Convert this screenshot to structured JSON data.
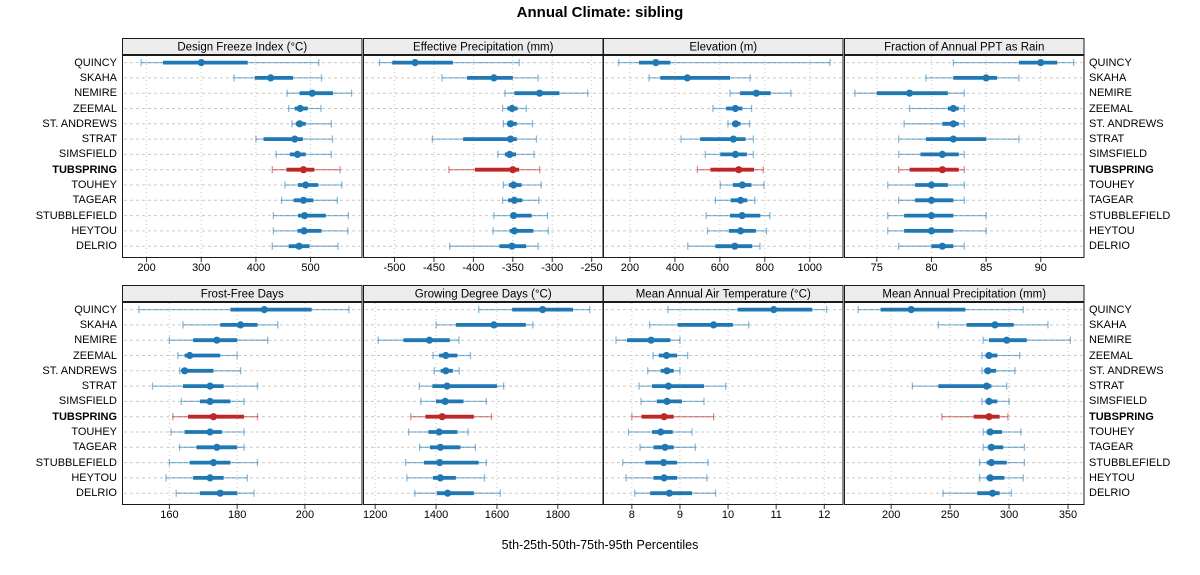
{
  "title": "Annual Climate: sibling",
  "footer": "5th-25th-50th-75th-95th Percentiles",
  "stations": [
    "QUINCY",
    "SKAHA",
    "NEMIRE",
    "ZEEMAL",
    "ST. ANDREWS",
    "STRAT",
    "SIMSFIELD",
    "TUBSPRING",
    "TOUHEY",
    "TAGEAR",
    "STUBBLEFIELD",
    "HEYTOU",
    "DELRIO"
  ],
  "highlight_station": "TUBSPRING",
  "colors": {
    "series": "#1f78b4",
    "highlight": "#bf2626",
    "whisker_opacity": 0.5,
    "strip_bg": "#ececec",
    "panel_border": "#1a1a1a",
    "grid_h": "#c9c9c9",
    "grid_v": "#c6c6c6",
    "tick": "#333333",
    "text": "#000000"
  },
  "chart_data": {
    "type": "scatter",
    "variant": "percentile-whisker-dotplot-grid",
    "grid": "2x4",
    "percentiles": [
      5,
      25,
      50,
      75,
      95
    ],
    "legend_note": "dot = 50th, thick bar = 25th-75th, thin capped line = 5th-95th",
    "panels": [
      {
        "title": "Design Freeze Index (°C)",
        "row": 0,
        "col": 0,
        "xlim": [
          155,
          595
        ],
        "ticks": [
          200,
          300,
          400,
          500
        ],
        "values": [
          [
            190,
            230,
            300,
            385,
            515
          ],
          [
            360,
            398,
            427,
            468,
            520
          ],
          [
            457,
            480,
            503,
            541,
            575
          ],
          [
            460,
            471,
            481,
            495,
            519
          ],
          [
            466,
            473,
            480,
            491,
            538
          ],
          [
            400,
            414,
            471,
            486,
            540
          ],
          [
            437,
            462,
            476,
            491,
            538
          ],
          [
            430,
            456,
            487,
            507,
            554
          ],
          [
            453,
            477,
            491,
            514,
            557
          ],
          [
            447,
            469,
            487,
            505,
            549
          ],
          [
            432,
            477,
            489,
            528,
            569
          ],
          [
            432,
            476,
            488,
            520,
            568
          ],
          [
            430,
            460,
            479,
            498,
            550
          ]
        ]
      },
      {
        "title": "Effective Precipitation (mm)",
        "row": 0,
        "col": 1,
        "xlim": [
          -540,
          -235
        ],
        "ticks": [
          -500,
          -450,
          -400,
          -350,
          -300,
          -250
        ],
        "values": [
          [
            -519,
            -503,
            -474,
            -426,
            -342
          ],
          [
            -440,
            -408,
            -374,
            -350,
            -318
          ],
          [
            -360,
            -348,
            -316,
            -291,
            -255
          ],
          [
            -363,
            -357,
            -351,
            -344,
            -333
          ],
          [
            -362,
            -357,
            -353,
            -345,
            -325
          ],
          [
            -452,
            -413,
            -353,
            -345,
            -320
          ],
          [
            -369,
            -360,
            -354,
            -346,
            -323
          ],
          [
            -431,
            -398,
            -350,
            -342,
            -316
          ],
          [
            -362,
            -355,
            -349,
            -339,
            -314
          ],
          [
            -363,
            -356,
            -348,
            -338,
            -317
          ],
          [
            -374,
            -353,
            -349,
            -326,
            -306
          ],
          [
            -375,
            -354,
            -348,
            -324,
            -305
          ],
          [
            -430,
            -367,
            -351,
            -333,
            -318
          ]
        ]
      },
      {
        "title": "Elevation (m)",
        "row": 0,
        "col": 2,
        "xlim": [
          80,
          1150
        ],
        "ticks": [
          200,
          400,
          600,
          800,
          1000
        ],
        "values": [
          [
            150,
            240,
            315,
            380,
            1090
          ],
          [
            285,
            335,
            455,
            645,
            735
          ],
          [
            645,
            690,
            762,
            826,
            916
          ],
          [
            569,
            628,
            669,
            700,
            741
          ],
          [
            636,
            655,
            670,
            692,
            732
          ],
          [
            427,
            512,
            660,
            714,
            749
          ],
          [
            535,
            602,
            669,
            720,
            749
          ],
          [
            500,
            558,
            684,
            752,
            793
          ],
          [
            602,
            658,
            700,
            740,
            796
          ],
          [
            580,
            648,
            692,
            722,
            755
          ],
          [
            539,
            645,
            699,
            780,
            822
          ],
          [
            545,
            640,
            692,
            760,
            807
          ],
          [
            457,
            580,
            666,
            744,
            778
          ]
        ]
      },
      {
        "title": "Fraction of Annual PPT as Rain",
        "row": 0,
        "col": 3,
        "xlim": [
          72,
          94
        ],
        "ticks": [
          75,
          80,
          85,
          90
        ],
        "values": [
          [
            82,
            88,
            90,
            91.5,
            93
          ],
          [
            79.5,
            82,
            85,
            86,
            88
          ],
          [
            73,
            75,
            78,
            81.5,
            83
          ],
          [
            78,
            81.5,
            82,
            82.5,
            83
          ],
          [
            77.5,
            81,
            82,
            82.5,
            83
          ],
          [
            77,
            79.5,
            82,
            85,
            88
          ],
          [
            77,
            79,
            81,
            82.5,
            83
          ],
          [
            77,
            78,
            81,
            82.5,
            83
          ],
          [
            76,
            78.5,
            80,
            81.5,
            83
          ],
          [
            77,
            78.5,
            80,
            82,
            83
          ],
          [
            76,
            77.5,
            80,
            82,
            85
          ],
          [
            76,
            77.5,
            80,
            82,
            85
          ],
          [
            77,
            80,
            81,
            82,
            83
          ]
        ]
      },
      {
        "title": "Frost-Free Days",
        "row": 1,
        "col": 0,
        "xlim": [
          146,
          217
        ],
        "ticks": [
          160,
          180,
          200
        ],
        "values": [
          [
            151,
            178,
            188,
            202,
            213
          ],
          [
            164,
            175,
            181,
            186,
            192
          ],
          [
            160,
            167,
            174,
            180,
            189
          ],
          [
            162.5,
            164.5,
            166,
            175,
            180
          ],
          [
            163,
            163.5,
            164.5,
            173,
            181
          ],
          [
            155,
            164,
            172,
            176,
            186
          ],
          [
            163.5,
            169,
            172,
            178,
            182
          ],
          [
            161,
            165.5,
            173,
            182,
            186
          ],
          [
            160.5,
            164.5,
            172,
            175.5,
            182
          ],
          [
            163,
            168,
            174,
            180,
            182
          ],
          [
            160,
            166,
            173,
            178,
            186
          ],
          [
            159,
            167,
            172,
            176,
            183
          ],
          [
            162,
            169,
            175,
            180,
            185
          ]
        ]
      },
      {
        "title": "Growing Degree Days (°C)",
        "row": 1,
        "col": 1,
        "xlim": [
          1160,
          1950
        ],
        "ticks": [
          1200,
          1400,
          1600,
          1800
        ],
        "values": [
          [
            1540,
            1650,
            1750,
            1850,
            1905
          ],
          [
            1400,
            1465,
            1590,
            1695,
            1718
          ],
          [
            1210,
            1293,
            1378,
            1445,
            1475
          ],
          [
            1390,
            1410,
            1432,
            1470,
            1513
          ],
          [
            1394,
            1415,
            1432,
            1455,
            1476
          ],
          [
            1345,
            1388,
            1436,
            1600,
            1622
          ],
          [
            1350,
            1400,
            1430,
            1490,
            1565
          ],
          [
            1317,
            1365,
            1420,
            1524,
            1582
          ],
          [
            1310,
            1375,
            1410,
            1470,
            1505
          ],
          [
            1346,
            1380,
            1414,
            1480,
            1529
          ],
          [
            1300,
            1360,
            1412,
            1540,
            1565
          ],
          [
            1304,
            1390,
            1414,
            1465,
            1559
          ],
          [
            1330,
            1403,
            1438,
            1524,
            1611
          ]
        ]
      },
      {
        "title": "Mean Annual Air Temperature (°C)",
        "row": 1,
        "col": 2,
        "xlim": [
          7.4,
          12.4
        ],
        "ticks": [
          8,
          9,
          10,
          11,
          12
        ],
        "values": [
          [
            8.75,
            10.2,
            10.95,
            11.75,
            12.05
          ],
          [
            8.37,
            8.95,
            9.7,
            10.1,
            10.43
          ],
          [
            7.67,
            7.9,
            8.4,
            8.8,
            9.0
          ],
          [
            8.44,
            8.56,
            8.72,
            8.94,
            9.16
          ],
          [
            8.33,
            8.6,
            8.73,
            8.87,
            9.0
          ],
          [
            8.15,
            8.42,
            8.76,
            9.5,
            9.95
          ],
          [
            8.19,
            8.52,
            8.73,
            9.04,
            9.5
          ],
          [
            8.0,
            8.2,
            8.67,
            8.87,
            9.7
          ],
          [
            7.93,
            8.42,
            8.6,
            8.85,
            9.25
          ],
          [
            8.17,
            8.45,
            8.69,
            8.87,
            9.32
          ],
          [
            7.81,
            8.28,
            8.66,
            8.94,
            9.58
          ],
          [
            7.88,
            8.45,
            8.67,
            8.94,
            9.56
          ],
          [
            8.06,
            8.38,
            8.78,
            9.25,
            9.74
          ]
        ]
      },
      {
        "title": "Mean Annual Precipitation (mm)",
        "row": 1,
        "col": 3,
        "xlim": [
          160,
          364
        ],
        "ticks": [
          200,
          250,
          300,
          350
        ],
        "values": [
          [
            172,
            191,
            217,
            263,
            312
          ],
          [
            240,
            264,
            288,
            304,
            333
          ],
          [
            278,
            283,
            298,
            315,
            352
          ],
          [
            277,
            280,
            283,
            290,
            309
          ],
          [
            277,
            279,
            282,
            289,
            305
          ],
          [
            218,
            240,
            281,
            285,
            298
          ],
          [
            277,
            280,
            283,
            290,
            300
          ],
          [
            243,
            270,
            283,
            292,
            299
          ],
          [
            278,
            281,
            284,
            294,
            310
          ],
          [
            278,
            282,
            285,
            295,
            313
          ],
          [
            275,
            281,
            285,
            298,
            313
          ],
          [
            275,
            281,
            284,
            296,
            312
          ],
          [
            244,
            273,
            286,
            292,
            302
          ]
        ]
      }
    ]
  }
}
